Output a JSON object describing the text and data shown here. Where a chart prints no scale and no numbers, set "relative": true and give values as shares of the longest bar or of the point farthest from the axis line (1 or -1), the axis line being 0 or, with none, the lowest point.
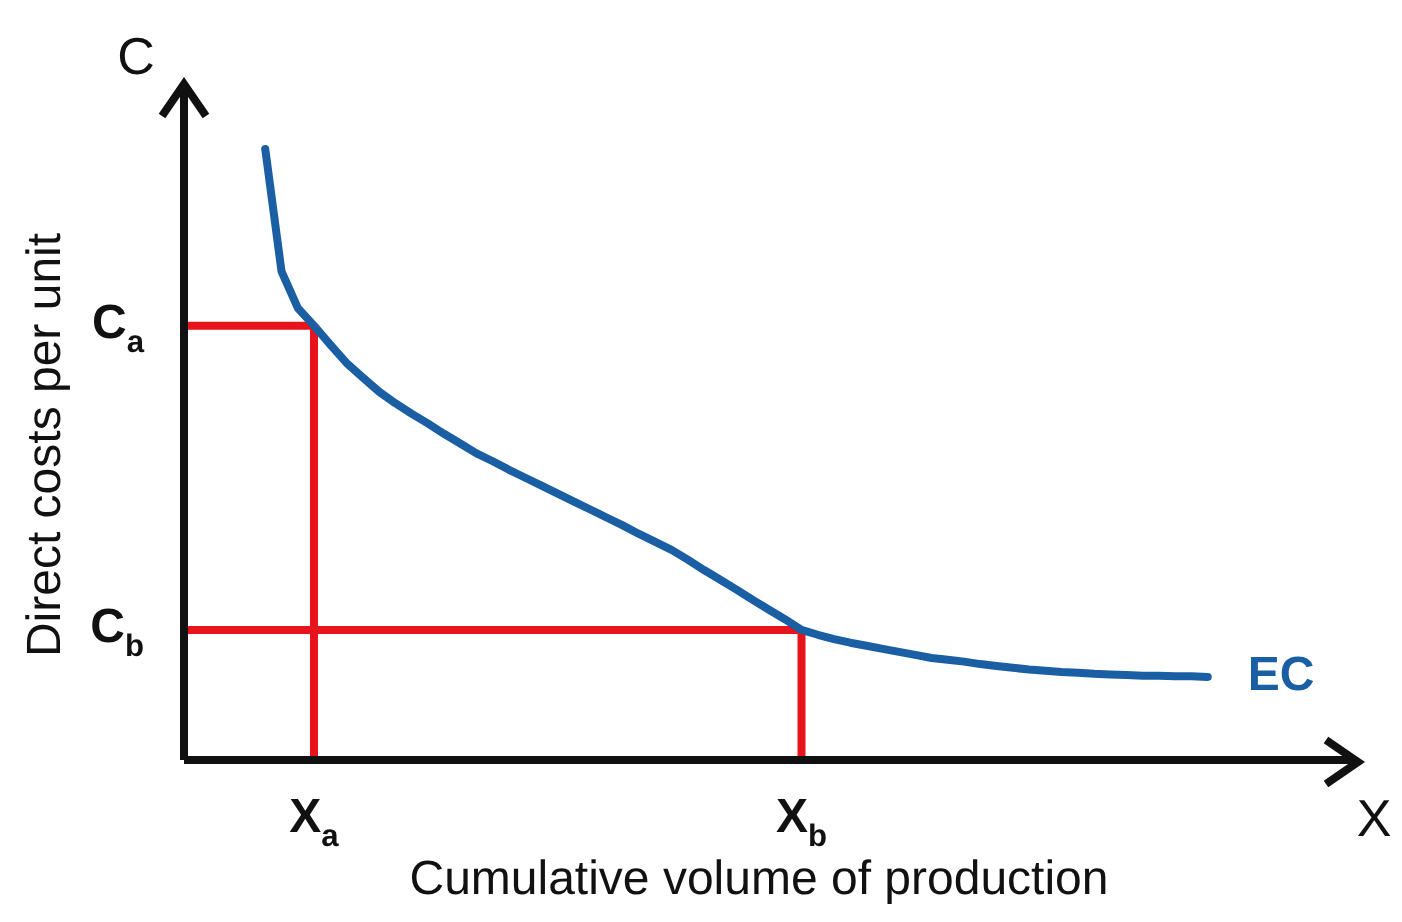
{
  "chart_data": {
    "type": "line",
    "relative": true,
    "xlabel": "Cumulative volume of production",
    "ylabel": "Direct costs per unit",
    "categories": [
      null,
      null,
      null,
      null,
      null,
      null,
      null,
      null,
      "X$_{a}$",
      null,
      null,
      null,
      null,
      null,
      null,
      null,
      null,
      null,
      null,
      null,
      null,
      null,
      null,
      null,
      null,
      null,
      null,
      null,
      null,
      null,
      null,
      null,
      null,
      null,
      null,
      null,
      null,
      null,
      "X$_{b}$",
      null,
      null,
      null,
      null,
      null,
      null,
      null,
      null,
      null,
      null,
      null,
      null,
      null,
      null,
      null,
      null,
      null,
      null,
      null,
      null,
      null,
      null,
      null,
      null,
      null,
      null,
      null,
      null,
      null,
      null,
      null,
      null,
      null,
      null
    ],
    "grid": false,
    "legend": false,
    "marker": "none",
    "line_style": "solid",
    "series": [
      {
        "name": "EC",
        "color": "#1a5ea4",
        "values": [
          null,
          null,
          null,
          null,
          null,
          1.0,
          0.8,
          0.74,
          0.711,
          0.68,
          0.65,
          0.626,
          0.603,
          0.584,
          0.567,
          0.551,
          0.534,
          0.518,
          0.502,
          0.489,
          0.475,
          0.462,
          0.449,
          0.436,
          0.423,
          0.41,
          0.397,
          0.384,
          0.37,
          0.357,
          0.344,
          0.328,
          0.311,
          0.295,
          0.279,
          0.262,
          0.246,
          0.23,
          0.213,
          0.205,
          0.198,
          0.192,
          0.187,
          0.182,
          0.177,
          0.172,
          0.167,
          0.164,
          0.161,
          0.157,
          0.154,
          0.151,
          0.148,
          0.146,
          0.144,
          0.143,
          0.141,
          0.14,
          0.139,
          0.138,
          0.138,
          0.137,
          0.137,
          0.136,
          null,
          null,
          null,
          null,
          null,
          null,
          null,
          null,
          null
        ]
      }
    ],
    "ref_lines": [
      {
        "axis": "y",
        "value": 0.711,
        "label": "C$_{a}$",
        "color": "#e8141c"
      },
      {
        "axis": "y",
        "value": 0.213,
        "label": "C$_{b}$",
        "color": "#e8141c"
      },
      {
        "axis": "x",
        "value": "X$_{a}$",
        "color": "#e8141c"
      },
      {
        "axis": "x",
        "value": "X$_{b}$",
        "color": "#e8141c"
      }
    ],
    "annotations": [
      "C",
      "X"
    ]
  }
}
